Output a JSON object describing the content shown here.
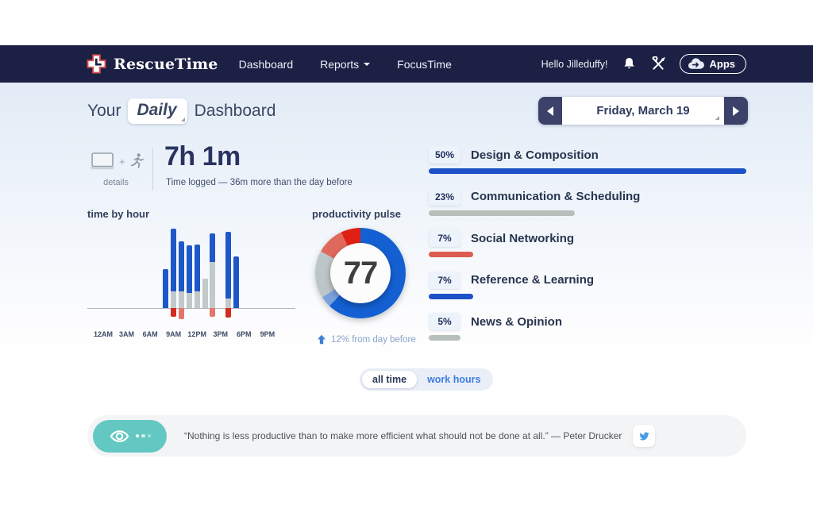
{
  "navbar": {
    "brand": "RescueTime",
    "links": [
      {
        "label": "Dashboard"
      },
      {
        "label": "Reports",
        "has_dropdown": true
      },
      {
        "label": "FocusTime"
      }
    ],
    "greeting": "Hello Jilleduffy!",
    "apps_button": "Apps",
    "icons": [
      "rescuetime-cross-clock-logo",
      "bell-icon",
      "tools-icon",
      "cloud-arrow-icon"
    ],
    "bg_color": "#1c2044"
  },
  "header": {
    "title_prefix": "Your",
    "period_selector": "Daily",
    "title_suffix": "Dashboard",
    "date_label": "Friday, March 19"
  },
  "summary": {
    "details_label": "details",
    "icons": [
      "laptop-icon",
      "plus",
      "runner-icon"
    ],
    "time_logged": "7h 1m",
    "comparison": "Time logged — 36m more than the day before"
  },
  "toggle": {
    "options": [
      {
        "label": "all time",
        "selected": true
      },
      {
        "label": "work hours",
        "selected": false
      }
    ]
  },
  "categories": [
    {
      "pct": "50%",
      "label": "Design & Composition",
      "value": 50,
      "color": "#1b52c8"
    },
    {
      "pct": "23%",
      "label": "Communication & Scheduling",
      "value": 23,
      "color": "#b7bfba"
    },
    {
      "pct": "7%",
      "label": "Social Networking",
      "value": 7,
      "color": "#db5c4e"
    },
    {
      "pct": "7%",
      "label": "Reference & Learning",
      "value": 7,
      "color": "#1b52c8"
    },
    {
      "pct": "5%",
      "label": "News & Opinion",
      "value": 5,
      "color": "#b7bfba"
    }
  ],
  "quote": {
    "text": "“Nothing is less productive than to make more efficient what should not be done at all.” — Peter Drucker",
    "share_icon": "twitter-bird-icon",
    "insight_icon": "eye-icon"
  },
  "chart_data": [
    {
      "type": "bar",
      "title": "time by hour",
      "x_axis_labels": [
        "12AM",
        "3AM",
        "6AM",
        "9AM",
        "12PM",
        "3PM",
        "6PM",
        "9PM"
      ],
      "y_unit": "minutes (estimated from bar heights)",
      "stack_order": [
        "productive (above line)",
        "neutral (above line)",
        "distracting (below line)"
      ],
      "bars": [
        {
          "hour": "8AM",
          "hour_index": 8,
          "productive": 28,
          "neutral": 0,
          "distracting": 0,
          "distracting_style": "none"
        },
        {
          "hour": "9AM",
          "hour_index": 9,
          "productive": 45,
          "neutral": 12,
          "distracting": 6,
          "distracting_style": "very-distracting"
        },
        {
          "hour": "10AM",
          "hour_index": 10,
          "productive": 36,
          "neutral": 12,
          "distracting": 8,
          "distracting_style": "distracting"
        },
        {
          "hour": "11AM",
          "hour_index": 11,
          "productive": 34,
          "neutral": 11,
          "distracting": 0,
          "distracting_style": "none"
        },
        {
          "hour": "12PM",
          "hour_index": 12,
          "productive": 34,
          "neutral": 12,
          "distracting": 0,
          "distracting_style": "none"
        },
        {
          "hour": "1PM",
          "hour_index": 13,
          "productive": 0,
          "neutral": 21,
          "distracting": 0,
          "distracting_style": "none"
        },
        {
          "hour": "2PM",
          "hour_index": 14,
          "productive": 21,
          "neutral": 33,
          "distracting": 6,
          "distracting_style": "distracting"
        },
        {
          "hour": "4PM",
          "hour_index": 16,
          "productive": 48,
          "neutral": 7,
          "distracting": 7,
          "distracting_style": "very-distracting"
        },
        {
          "hour": "5PM",
          "hour_index": 17,
          "productive": 37,
          "neutral": 0,
          "distracting": 0,
          "distracting_style": "none"
        }
      ],
      "colors": {
        "productive": "#1e57c8",
        "neutral": "#c2cac9",
        "very-distracting": "#d62b1f",
        "distracting": "#e4766b"
      }
    },
    {
      "type": "pie",
      "title": "productivity pulse",
      "center_value": "77",
      "delta_note": "12% from day before",
      "delta_direction": "up",
      "segments": [
        {
          "name": "very productive",
          "value": 62,
          "color": "#1460d2"
        },
        {
          "name": "productive",
          "value": 4,
          "color": "#7ba1dd"
        },
        {
          "name": "neutral",
          "value": 17,
          "color": "#bcc5c7"
        },
        {
          "name": "distracting",
          "value": 10,
          "color": "#e0695d"
        },
        {
          "name": "very distracting",
          "value": 7,
          "color": "#e02015"
        }
      ]
    },
    {
      "type": "bar",
      "title": "top categories (% of time logged)",
      "categories": [
        "Design & Composition",
        "Communication & Scheduling",
        "Social Networking",
        "Reference & Learning",
        "News & Opinion"
      ],
      "values": [
        50,
        23,
        7,
        7,
        5
      ],
      "bar_colors": [
        "#1b52c8",
        "#b7bfba",
        "#db5c4e",
        "#1b52c8",
        "#b7bfba"
      ],
      "note": "bar widths scaled relative to max value 50%"
    }
  ]
}
